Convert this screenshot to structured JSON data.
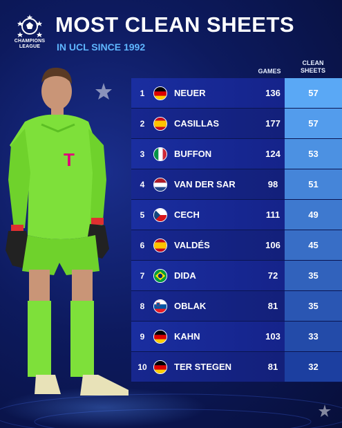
{
  "header": {
    "logo_text_line1": "CHAMPIONS",
    "logo_text_line2": "LEAGUE",
    "title": "MOST CLEAN SHEETS",
    "subtitle": "IN UCL SINCE 1992"
  },
  "columns": {
    "games": "GAMES",
    "clean_line1": "CLEAN",
    "clean_line2": "SHEETS"
  },
  "rows": [
    {
      "rank": "1",
      "name": "NEUER",
      "flag": "germany-flag-icon",
      "games": "136",
      "clean": "57"
    },
    {
      "rank": "2",
      "name": "CASILLAS",
      "flag": "spain-flag-icon",
      "games": "177",
      "clean": "57"
    },
    {
      "rank": "3",
      "name": "BUFFON",
      "flag": "italy-flag-icon",
      "games": "124",
      "clean": "53"
    },
    {
      "rank": "4",
      "name": "VAN DER SAR",
      "flag": "netherlands-flag-icon",
      "games": "98",
      "clean": "51"
    },
    {
      "rank": "5",
      "name": "CECH",
      "flag": "czechia-flag-icon",
      "games": "111",
      "clean": "49"
    },
    {
      "rank": "6",
      "name": "VALDÉS",
      "flag": "spain-flag-icon",
      "games": "106",
      "clean": "45"
    },
    {
      "rank": "7",
      "name": "DIDA",
      "flag": "brazil-flag-icon",
      "games": "72",
      "clean": "35"
    },
    {
      "rank": "8",
      "name": "OBLAK",
      "flag": "slovenia-flag-icon",
      "games": "81",
      "clean": "35"
    },
    {
      "rank": "9",
      "name": "KAHN",
      "flag": "germany-flag-icon",
      "games": "103",
      "clean": "33"
    },
    {
      "rank": "10",
      "name": "TER STEGEN",
      "flag": "germany-flag-icon",
      "games": "81",
      "clean": "32"
    }
  ],
  "colors": {
    "subtitle": "#5fb6ff",
    "clean_top": "#5aa8f5",
    "clean_bottom": "#1c3fa0",
    "kit": "#7ee03a"
  }
}
